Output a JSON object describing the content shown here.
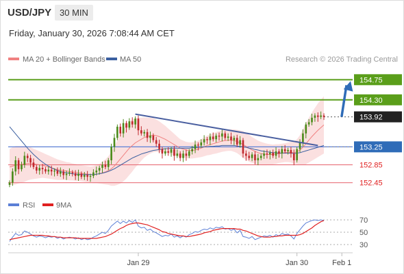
{
  "header": {
    "symbol": "USD/JPY",
    "timeframe": "30 MIN",
    "timestamp": "Friday, January 30, 2026 7:08:44 AM CET"
  },
  "colors": {
    "bollinger": "#f08080",
    "ma50": "#3a5fa0",
    "green": "#5a9e1a",
    "blue_line": "#5b7fd6",
    "red_line": "#e8707a",
    "rsi": "#5b7fd6",
    "rsi_ma": "#e02020",
    "arrow": "#2f6cb8",
    "trend": "#4a5fa0"
  },
  "legend": {
    "bb_label": "MA 20 + Bollinger Bands",
    "ma50_label": "MA 50",
    "copyright": "Research © 2026 Trading Central"
  },
  "rsi_legend": {
    "rsi_label": "RSI",
    "ma_label": "9MA"
  },
  "chart_data": {
    "type": "candlestick",
    "ylim": [
      152.2,
      155.0
    ],
    "price_levels": [
      {
        "value": 154.75,
        "label": "154.75",
        "kind": "resistance"
      },
      {
        "value": 154.3,
        "label": "154.30",
        "kind": "resistance"
      },
      {
        "value": 153.92,
        "label": "153.92",
        "kind": "last"
      },
      {
        "value": 153.25,
        "label": "153.25",
        "kind": "pivot"
      },
      {
        "value": 152.85,
        "label": "152.85",
        "kind": "support"
      },
      {
        "value": 152.45,
        "label": "152.45",
        "kind": "support"
      }
    ],
    "x_ticks": [
      "Jan 29",
      "Jan 30",
      "Feb 1"
    ],
    "x_tick_index": [
      43,
      96,
      111
    ],
    "closes": [
      152.45,
      152.7,
      152.95,
      152.75,
      152.85,
      153.05,
      153.0,
      152.9,
      152.8,
      152.72,
      152.78,
      152.75,
      152.7,
      152.74,
      152.7,
      152.72,
      152.65,
      152.7,
      152.62,
      152.65,
      152.68,
      152.66,
      152.6,
      152.65,
      152.58,
      152.62,
      152.58,
      152.6,
      152.68,
      152.72,
      152.78,
      152.85,
      152.8,
      152.95,
      153.25,
      153.45,
      153.7,
      153.55,
      153.78,
      153.68,
      153.82,
      153.75,
      153.88,
      153.62,
      153.55,
      153.58,
      153.45,
      153.5,
      153.4,
      153.32,
      153.2,
      153.1,
      153.15,
      153.12,
      153.2,
      153.05,
      153.1,
      153.0,
      153.1,
      153.05,
      153.15,
      153.2,
      153.3,
      153.28,
      153.35,
      153.42,
      153.4,
      153.48,
      153.42,
      153.5,
      153.48,
      153.55,
      153.45,
      153.48,
      153.4,
      153.45,
      153.3,
      153.4,
      153.1,
      153.05,
      153.0,
      153.08,
      152.95,
      153.0,
      153.05,
      153.1,
      153.08,
      153.12,
      153.05,
      153.15,
      153.1,
      153.2,
      153.15,
      153.18,
      153.1,
      152.95,
      153.2,
      153.35,
      153.55,
      153.75,
      153.8,
      153.9,
      153.95,
      153.92,
      153.95,
      153.92
    ],
    "ma20": [
      152.8,
      152.82,
      152.84,
      152.85,
      152.86,
      152.87,
      152.88,
      152.88,
      152.87,
      152.86,
      152.85,
      152.84,
      152.82,
      152.8,
      152.78,
      152.76,
      152.74,
      152.73,
      152.72,
      152.71,
      152.7,
      152.69,
      152.68,
      152.67,
      152.66,
      152.65,
      152.64,
      152.63,
      152.63,
      152.64,
      152.65,
      152.67,
      152.69,
      152.72,
      152.76,
      152.82,
      152.9,
      152.98,
      153.06,
      153.14,
      153.22,
      153.28,
      153.34,
      153.38,
      153.42,
      153.46,
      153.48,
      153.5,
      153.51,
      153.5,
      153.48,
      153.45,
      153.42,
      153.38,
      153.34,
      153.3,
      153.26,
      153.22,
      153.2,
      153.18,
      153.17,
      153.17,
      153.18,
      153.2,
      153.22,
      153.25,
      153.28,
      153.3,
      153.32,
      153.34,
      153.36,
      153.38,
      153.39,
      153.4,
      153.4,
      153.39,
      153.37,
      153.34,
      153.3,
      153.26,
      153.22,
      153.18,
      153.15,
      153.12,
      153.1,
      153.09,
      153.08,
      153.08,
      153.08,
      153.09,
      153.1,
      153.11,
      153.12,
      153.13,
      153.13,
      153.12,
      153.14,
      153.18,
      153.24,
      153.32,
      153.4,
      153.48,
      153.55,
      153.62,
      153.68,
      153.74
    ],
    "ma50": [
      153.7,
      153.62,
      153.54,
      153.46,
      153.38,
      153.3,
      153.22,
      153.15,
      153.08,
      153.02,
      152.96,
      152.91,
      152.86,
      152.82,
      152.78,
      152.75,
      152.72,
      152.7,
      152.68,
      152.67,
      152.66,
      152.65,
      152.64,
      152.64,
      152.63,
      152.63,
      152.63,
      152.63,
      152.63,
      152.64,
      152.65,
      152.66,
      152.68,
      152.7,
      152.73,
      152.76,
      152.8,
      152.84,
      152.88,
      152.92,
      152.96,
      153.0,
      153.03,
      153.06,
      153.09,
      153.11,
      153.13,
      153.15,
      153.17,
      153.18,
      153.19,
      153.2,
      153.21,
      153.21,
      153.22,
      153.22,
      153.22,
      153.22,
      153.22,
      153.22,
      153.22,
      153.23,
      153.23,
      153.24,
      153.24,
      153.25,
      153.25,
      153.26,
      153.26,
      153.27,
      153.27,
      153.28,
      153.28,
      153.28,
      153.28,
      153.28,
      153.27,
      153.26,
      153.25,
      153.24,
      153.22,
      153.21,
      153.19,
      153.18,
      153.16,
      153.15,
      153.14,
      153.13,
      153.12,
      153.12,
      153.11,
      153.11,
      153.11,
      153.11,
      153.11,
      153.1,
      153.11,
      153.12,
      153.14,
      153.16,
      153.18,
      153.2,
      153.22,
      153.24,
      153.26,
      153.28
    ],
    "bb_width": [
      0.4,
      0.42,
      0.43,
      0.42,
      0.41,
      0.4,
      0.38,
      0.36,
      0.34,
      0.32,
      0.3,
      0.28,
      0.27,
      0.26,
      0.25,
      0.24,
      0.23,
      0.22,
      0.21,
      0.2,
      0.2,
      0.19,
      0.19,
      0.18,
      0.18,
      0.18,
      0.18,
      0.18,
      0.19,
      0.2,
      0.22,
      0.25,
      0.28,
      0.32,
      0.38,
      0.44,
      0.5,
      0.55,
      0.58,
      0.6,
      0.6,
      0.58,
      0.55,
      0.52,
      0.48,
      0.45,
      0.42,
      0.4,
      0.38,
      0.36,
      0.34,
      0.32,
      0.3,
      0.28,
      0.26,
      0.24,
      0.22,
      0.2,
      0.19,
      0.18,
      0.18,
      0.18,
      0.18,
      0.19,
      0.2,
      0.21,
      0.22,
      0.23,
      0.23,
      0.24,
      0.24,
      0.24,
      0.24,
      0.24,
      0.24,
      0.25,
      0.26,
      0.28,
      0.3,
      0.3,
      0.3,
      0.29,
      0.28,
      0.27,
      0.26,
      0.25,
      0.24,
      0.23,
      0.22,
      0.22,
      0.21,
      0.21,
      0.21,
      0.22,
      0.23,
      0.25,
      0.28,
      0.33,
      0.4,
      0.46,
      0.5,
      0.54,
      0.57,
      0.6,
      0.62,
      0.64
    ],
    "trendline": {
      "start_index": 42,
      "start_value": 153.98,
      "end_index": 103,
      "end_value": 153.28
    },
    "projection": {
      "start_index": 110,
      "start_value": 153.92,
      "target_value": 154.75
    },
    "rsi": {
      "levels": [
        70,
        50,
        30
      ],
      "ylim": [
        20,
        80
      ],
      "values": [
        35,
        42,
        48,
        45,
        46,
        52,
        50,
        47,
        44,
        42,
        44,
        43,
        41,
        43,
        42,
        43,
        40,
        42,
        39,
        41,
        42,
        41,
        39,
        41,
        38,
        40,
        38,
        39,
        42,
        44,
        47,
        50,
        48,
        53,
        60,
        64,
        68,
        64,
        68,
        65,
        69,
        66,
        70,
        60,
        57,
        58,
        53,
        55,
        51,
        49,
        46,
        43,
        45,
        44,
        47,
        42,
        44,
        41,
        44,
        42,
        46,
        48,
        51,
        50,
        53,
        55,
        54,
        57,
        55,
        58,
        57,
        59,
        55,
        56,
        53,
        55,
        49,
        53,
        43,
        42,
        40,
        43,
        38,
        40,
        42,
        44,
        43,
        45,
        42,
        46,
        44,
        48,
        46,
        47,
        44,
        39,
        48,
        54,
        60,
        65,
        67,
        69,
        70,
        69,
        70,
        69
      ],
      "ma9": [
        38,
        39,
        40,
        41,
        42,
        43,
        44,
        45,
        45,
        45,
        45,
        45,
        44,
        44,
        43,
        43,
        42,
        42,
        41,
        41,
        41,
        41,
        41,
        40,
        40,
        40,
        40,
        40,
        40,
        40,
        41,
        42,
        43,
        45,
        47,
        50,
        53,
        56,
        58,
        61,
        63,
        64,
        65,
        65,
        64,
        63,
        62,
        60,
        58,
        56,
        54,
        51,
        50,
        48,
        47,
        46,
        45,
        44,
        44,
        43,
        43,
        44,
        45,
        46,
        47,
        49,
        50,
        51,
        53,
        54,
        55,
        56,
        56,
        56,
        56,
        56,
        55,
        55,
        53,
        52,
        50,
        48,
        46,
        44,
        43,
        42,
        42,
        42,
        43,
        43,
        44,
        44,
        45,
        45,
        45,
        45,
        45,
        46,
        48,
        51,
        54,
        57,
        61,
        64,
        67,
        69
      ]
    }
  }
}
